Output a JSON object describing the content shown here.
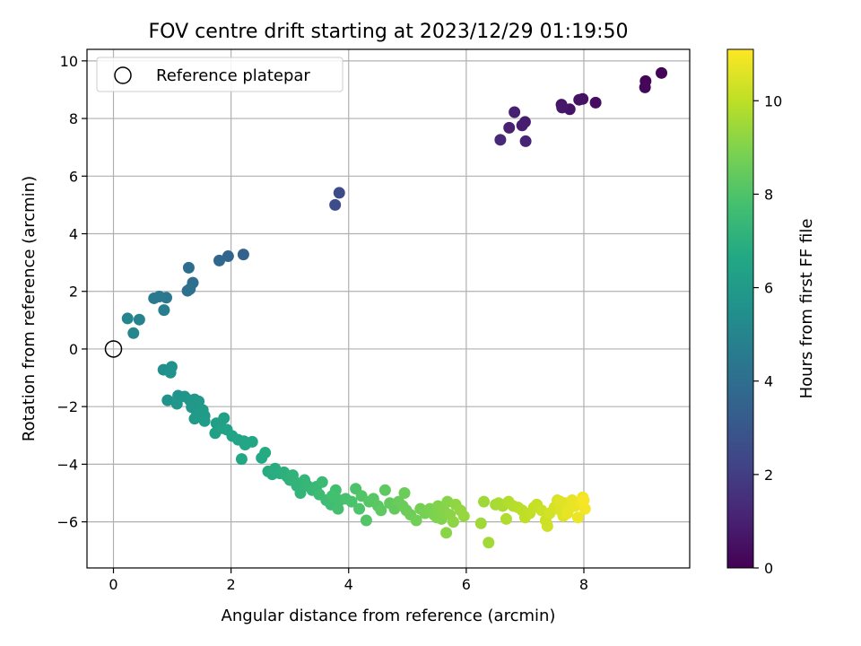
{
  "chart_data": {
    "type": "scatter",
    "title": "FOV centre drift starting at 2023/12/29 01:19:50",
    "xlabel": "Angular distance from reference (arcmin)",
    "ylabel": "Rotation from reference (arcmin)",
    "xlim": [
      -0.45,
      9.8
    ],
    "ylim": [
      -7.6,
      10.4
    ],
    "xticks": [
      0,
      2,
      4,
      6,
      8
    ],
    "yticks": [
      -6,
      -4,
      -2,
      0,
      2,
      4,
      6,
      8,
      10
    ],
    "grid": true,
    "legend": {
      "placement": "top-left",
      "entries": [
        {
          "label": "Reference platepar",
          "marker": "open-circle",
          "x": 0,
          "y": 0
        }
      ]
    },
    "colorbar": {
      "label": "Hours from first FF file",
      "colormap": "viridis",
      "range": [
        0,
        11.1
      ],
      "ticks": [
        0,
        2,
        4,
        6,
        8,
        10
      ]
    },
    "series": [
      {
        "points": [
          [
            9.05,
            9.3,
            0.15
          ],
          [
            9.32,
            9.58,
            0.1
          ],
          [
            9.04,
            9.08,
            0.2
          ],
          [
            8.2,
            8.55,
            0.4
          ],
          [
            7.98,
            8.68,
            0.5
          ],
          [
            7.92,
            8.65,
            0.55
          ],
          [
            7.76,
            8.32,
            0.6
          ],
          [
            7.62,
            8.48,
            0.65
          ],
          [
            7.63,
            8.38,
            0.7
          ],
          [
            7.0,
            7.88,
            0.85
          ],
          [
            6.95,
            7.76,
            0.9
          ],
          [
            6.82,
            8.22,
            0.95
          ],
          [
            6.73,
            7.68,
            1.0
          ],
          [
            7.01,
            7.21,
            1.1
          ],
          [
            6.58,
            7.26,
            1.3
          ],
          [
            3.84,
            5.42,
            2.5
          ],
          [
            3.77,
            5.0,
            2.6
          ],
          [
            2.21,
            3.28,
            3.5
          ],
          [
            1.95,
            3.22,
            3.6
          ],
          [
            1.8,
            3.07,
            3.7
          ],
          [
            1.28,
            2.82,
            3.95
          ],
          [
            1.35,
            2.3,
            4.0
          ],
          [
            1.26,
            2.02,
            4.1
          ],
          [
            1.3,
            2.08,
            4.15
          ],
          [
            0.9,
            1.78,
            4.4
          ],
          [
            0.78,
            1.82,
            4.5
          ],
          [
            0.69,
            1.76,
            4.55
          ],
          [
            0.86,
            1.35,
            4.65
          ],
          [
            0.44,
            1.02,
            4.9
          ],
          [
            0.24,
            1.06,
            5.0
          ],
          [
            0.34,
            0.55,
            5.1
          ],
          [
            0.99,
            -0.62,
            5.55
          ],
          [
            0.85,
            -0.72,
            5.5
          ],
          [
            0.97,
            -0.82,
            5.6
          ],
          [
            0.92,
            -1.78,
            5.65
          ],
          [
            1.1,
            -1.62,
            5.7
          ],
          [
            1.21,
            -1.65,
            5.75
          ],
          [
            1.08,
            -1.9,
            5.8
          ],
          [
            1.3,
            -1.78,
            5.8
          ],
          [
            1.38,
            -1.75,
            5.85
          ],
          [
            1.45,
            -1.82,
            5.9
          ],
          [
            1.33,
            -2.02,
            5.9
          ],
          [
            1.42,
            -2.2,
            5.95
          ],
          [
            1.52,
            -2.12,
            6.0
          ],
          [
            1.38,
            -2.42,
            6.05
          ],
          [
            1.55,
            -2.32,
            6.05
          ],
          [
            1.55,
            -2.5,
            6.1
          ],
          [
            1.75,
            -2.58,
            6.2
          ],
          [
            1.88,
            -2.4,
            6.25
          ],
          [
            1.73,
            -2.92,
            6.25
          ],
          [
            1.85,
            -2.75,
            6.3
          ],
          [
            1.93,
            -2.8,
            6.35
          ],
          [
            2.02,
            -3.02,
            6.4
          ],
          [
            2.12,
            -3.15,
            6.45
          ],
          [
            2.22,
            -3.2,
            6.5
          ],
          [
            2.36,
            -3.22,
            6.55
          ],
          [
            2.24,
            -3.32,
            6.55
          ],
          [
            2.18,
            -3.82,
            6.6
          ],
          [
            2.52,
            -3.78,
            6.7
          ],
          [
            2.58,
            -3.6,
            6.75
          ],
          [
            2.63,
            -4.25,
            6.8
          ],
          [
            2.7,
            -4.35,
            6.85
          ],
          [
            2.75,
            -4.15,
            6.9
          ],
          [
            2.83,
            -4.32,
            6.95
          ],
          [
            2.9,
            -4.28,
            7.0
          ],
          [
            2.95,
            -4.42,
            7.05
          ],
          [
            3.0,
            -4.55,
            7.1
          ],
          [
            3.05,
            -4.38,
            7.15
          ],
          [
            3.12,
            -4.75,
            7.2
          ],
          [
            3.08,
            -4.6,
            7.2
          ],
          [
            3.18,
            -5.0,
            7.25
          ],
          [
            3.25,
            -4.55,
            7.3
          ],
          [
            3.3,
            -4.75,
            7.35
          ],
          [
            3.38,
            -4.9,
            7.4
          ],
          [
            3.45,
            -4.78,
            7.45
          ],
          [
            3.55,
            -4.62,
            7.5
          ],
          [
            3.5,
            -5.05,
            7.55
          ],
          [
            3.62,
            -5.25,
            7.6
          ],
          [
            3.7,
            -5.4,
            7.65
          ],
          [
            3.78,
            -4.9,
            7.7
          ],
          [
            3.85,
            -5.25,
            7.75
          ],
          [
            3.72,
            -5.1,
            7.75
          ],
          [
            3.82,
            -5.55,
            7.8
          ],
          [
            3.95,
            -5.2,
            7.85
          ],
          [
            4.05,
            -5.3,
            7.9
          ],
          [
            4.12,
            -4.85,
            7.95
          ],
          [
            4.18,
            -5.55,
            8.0
          ],
          [
            4.22,
            -5.1,
            8.05
          ],
          [
            4.3,
            -5.95,
            8.1
          ],
          [
            4.35,
            -5.3,
            8.15
          ],
          [
            4.42,
            -5.2,
            8.2
          ],
          [
            4.5,
            -5.45,
            8.25
          ],
          [
            4.55,
            -5.6,
            8.3
          ],
          [
            4.62,
            -4.9,
            8.35
          ],
          [
            4.7,
            -5.35,
            8.4
          ],
          [
            4.78,
            -5.55,
            8.45
          ],
          [
            4.85,
            -5.3,
            8.5
          ],
          [
            4.92,
            -5.45,
            8.55
          ],
          [
            4.98,
            -5.6,
            8.6
          ],
          [
            4.95,
            -5.0,
            8.6
          ],
          [
            5.05,
            -5.75,
            8.65
          ],
          [
            5.15,
            -5.95,
            8.7
          ],
          [
            5.22,
            -5.55,
            8.75
          ],
          [
            5.3,
            -5.7,
            8.8
          ],
          [
            5.38,
            -5.55,
            8.85
          ],
          [
            5.45,
            -5.75,
            8.9
          ],
          [
            5.5,
            -5.85,
            8.95
          ],
          [
            5.58,
            -5.9,
            9.0
          ],
          [
            5.52,
            -5.45,
            9.0
          ],
          [
            5.62,
            -5.6,
            9.05
          ],
          [
            5.68,
            -5.3,
            9.1
          ],
          [
            5.72,
            -5.75,
            9.15
          ],
          [
            5.66,
            -6.38,
            9.15
          ],
          [
            5.78,
            -6.0,
            9.2
          ],
          [
            5.82,
            -5.4,
            9.25
          ],
          [
            5.9,
            -5.6,
            9.3
          ],
          [
            5.96,
            -5.8,
            9.35
          ],
          [
            6.3,
            -5.3,
            9.5
          ],
          [
            6.25,
            -6.05,
            9.5
          ],
          [
            6.38,
            -6.72,
            9.55
          ],
          [
            6.5,
            -5.4,
            9.6
          ],
          [
            6.55,
            -5.35,
            9.65
          ],
          [
            6.62,
            -5.45,
            9.7
          ],
          [
            6.68,
            -5.9,
            9.75
          ],
          [
            6.72,
            -5.3,
            9.8
          ],
          [
            6.8,
            -5.45,
            9.85
          ],
          [
            6.88,
            -5.5,
            9.9
          ],
          [
            6.95,
            -5.6,
            9.95
          ],
          [
            7.0,
            -5.85,
            10.0
          ],
          [
            7.08,
            -5.7,
            10.05
          ],
          [
            7.15,
            -5.5,
            10.1
          ],
          [
            7.2,
            -5.4,
            10.15
          ],
          [
            7.28,
            -5.6,
            10.2
          ],
          [
            7.35,
            -5.95,
            10.25
          ],
          [
            7.38,
            -6.15,
            10.3
          ],
          [
            7.42,
            -5.7,
            10.35
          ],
          [
            7.5,
            -5.5,
            10.4
          ],
          [
            7.55,
            -5.25,
            10.45
          ],
          [
            7.6,
            -5.6,
            10.5
          ],
          [
            7.65,
            -5.8,
            10.55
          ],
          [
            7.68,
            -5.35,
            10.6
          ],
          [
            7.75,
            -5.55,
            10.65
          ],
          [
            7.8,
            -5.25,
            10.7
          ],
          [
            7.85,
            -5.45,
            10.75
          ],
          [
            7.9,
            -5.85,
            10.8
          ],
          [
            7.95,
            -5.3,
            10.85
          ],
          [
            7.98,
            -5.15,
            10.9
          ],
          [
            8.02,
            -5.55,
            10.95
          ],
          [
            8.0,
            -5.25,
            11.0
          ],
          [
            7.6,
            -5.3,
            10.6
          ],
          [
            7.72,
            -5.7,
            10.7
          ]
        ]
      }
    ]
  }
}
